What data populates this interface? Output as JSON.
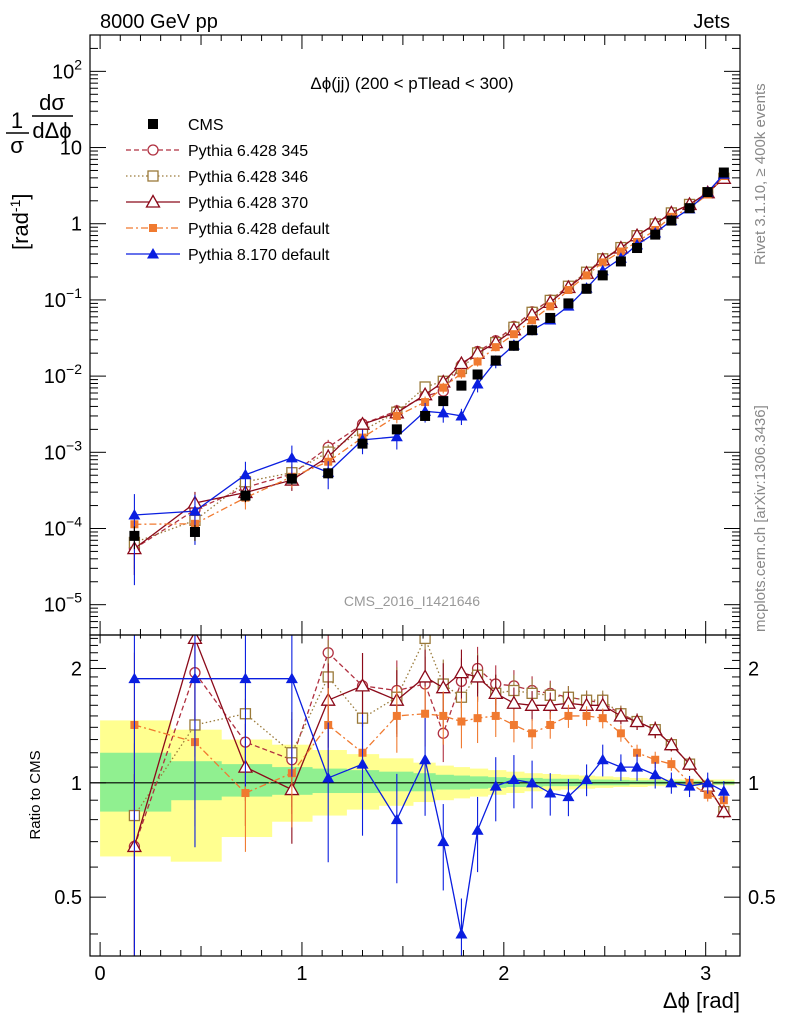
{
  "header": {
    "left": "8000 GeV pp",
    "right": "Jets"
  },
  "side_text": {
    "rivet": "Rivet 3.1.10, ≥ 400k events",
    "mcplots": "mcplots.cern.ch [arXiv:1306.3436]"
  },
  "plot_title": "Δϕ(jj) (200 < pTlead <  300)",
  "watermark": "CMS_2016_I1421646",
  "y_label_main": {
    "one": "1",
    "sigma": "σ",
    "dsig": "dσ",
    "dphi": "dΔϕ",
    "unit_open": "[rad",
    "unit_exp": "-1",
    "unit_close": "]"
  },
  "y_label_ratio": "Ratio to CMS",
  "x_label": "Δϕ [rad]",
  "colors": {
    "cms": "#000000",
    "p345": "#b03040",
    "p346": "#9a7a3a",
    "p370": "#8b0a1a",
    "p6def": "#f07a30",
    "p8": "#0a1ee0",
    "band_inner": "#90f090",
    "band_outer": "#ffff90"
  },
  "chart_data": {
    "type": "line",
    "x_axis": {
      "range": [
        -0.05,
        3.17
      ],
      "ticks": [
        0,
        1,
        2,
        3
      ],
      "tick_labels": [
        "0",
        "1",
        "2",
        "3"
      ],
      "label": "Δϕ [rad]"
    },
    "y_axis_main": {
      "scale": "log",
      "range": [
        4e-06,
        300
      ],
      "ticks": [
        1e-05,
        0.0001,
        0.001,
        0.01,
        0.1,
        1,
        10,
        100
      ],
      "tick_labels": [
        {
          "base": "10",
          "exp": "−5"
        },
        {
          "base": "10",
          "exp": "−4"
        },
        {
          "base": "10",
          "exp": "−3"
        },
        {
          "base": "10",
          "exp": "−2"
        },
        {
          "base": "10",
          "exp": "−1"
        },
        {
          "base": "1",
          "exp": ""
        },
        {
          "base": "10",
          "exp": ""
        },
        {
          "base": "10",
          "exp": "2"
        }
      ]
    },
    "y_axis_ratio": {
      "scale": "log",
      "range": [
        0.35,
        2.45
      ],
      "ticks": [
        0.5,
        1,
        2
      ],
      "tick_labels": [
        "0.5",
        "1",
        "2"
      ],
      "label": "Ratio to CMS"
    },
    "legend": {
      "placement": "top-left",
      "entries": [
        {
          "key": "cms",
          "label": "CMS"
        },
        {
          "key": "p345",
          "label": "Pythia 6.428 345"
        },
        {
          "key": "p346",
          "label": "Pythia 6.428 346"
        },
        {
          "key": "p370",
          "label": "Pythia 6.428 370"
        },
        {
          "key": "p6def",
          "label": "Pythia 6.428 default"
        },
        {
          "key": "p8",
          "label": "Pythia 8.170 default"
        }
      ]
    },
    "data": {
      "x": [
        0.17,
        0.47,
        0.72,
        0.95,
        1.13,
        1.3,
        1.47,
        1.61,
        1.7,
        1.79,
        1.87,
        1.96,
        2.05,
        2.14,
        2.23,
        2.32,
        2.41,
        2.49,
        2.58,
        2.66,
        2.75,
        2.83,
        2.92,
        3.01,
        3.09
      ],
      "y": [
        8e-05,
        9e-05,
        0.00027,
        0.00045,
        0.00053,
        0.0013,
        0.002,
        0.003,
        0.0047,
        0.0075,
        0.0105,
        0.016,
        0.025,
        0.04,
        0.058,
        0.09,
        0.14,
        0.21,
        0.32,
        0.48,
        0.72,
        1.1,
        1.6,
        2.6,
        4.7
      ]
    },
    "bands": {
      "edges": [
        0.0,
        0.35,
        0.6,
        0.85,
        1.05,
        1.22,
        1.38,
        1.55,
        1.66,
        1.75,
        1.83,
        1.92,
        2.01,
        2.1,
        2.19,
        2.28,
        2.37,
        2.45,
        2.54,
        2.62,
        2.71,
        2.79,
        2.88,
        2.97,
        3.05,
        3.14
      ],
      "inner_lo": [
        0.84,
        0.9,
        0.92,
        0.93,
        0.94,
        0.94,
        0.95,
        0.95,
        0.96,
        0.96,
        0.965,
        0.97,
        0.975,
        0.975,
        0.98,
        0.98,
        0.985,
        0.985,
        0.985,
        0.99,
        0.99,
        0.99,
        0.99,
        0.99,
        0.99
      ],
      "inner_hi": [
        1.2,
        1.14,
        1.12,
        1.1,
        1.09,
        1.08,
        1.07,
        1.06,
        1.05,
        1.045,
        1.04,
        1.035,
        1.03,
        1.03,
        1.025,
        1.025,
        1.02,
        1.02,
        1.018,
        1.015,
        1.015,
        1.012,
        1.012,
        1.01,
        1.01
      ],
      "outer_lo": [
        0.64,
        0.62,
        0.72,
        0.79,
        0.82,
        0.85,
        0.87,
        0.89,
        0.9,
        0.91,
        0.92,
        0.93,
        0.94,
        0.95,
        0.955,
        0.96,
        0.965,
        0.97,
        0.975,
        0.975,
        0.98,
        0.98,
        0.98,
        0.985,
        0.985
      ],
      "outer_hi": [
        1.46,
        1.38,
        1.3,
        1.26,
        1.22,
        1.19,
        1.16,
        1.13,
        1.11,
        1.1,
        1.09,
        1.08,
        1.07,
        1.06,
        1.055,
        1.05,
        1.045,
        1.04,
        1.035,
        1.03,
        1.025,
        1.022,
        1.02,
        1.02,
        1.02
      ]
    },
    "series": [
      {
        "key": "p345",
        "marker": "open-circle",
        "dash": "5,3",
        "ratio": [
          0.68,
          1.95,
          1.28,
          1.15,
          2.2,
          1.8,
          1.75,
          1.82,
          1.35,
          1.85,
          2.0,
          1.82,
          1.8,
          1.75,
          1.72,
          1.68,
          1.65,
          1.62,
          1.52,
          1.45,
          1.38,
          1.26,
          1.12,
          0.98,
          0.84
        ]
      },
      {
        "key": "p346",
        "marker": "open-square",
        "dash": "1.5,2.5",
        "ratio": [
          0.82,
          1.42,
          1.52,
          1.2,
          1.9,
          1.48,
          1.68,
          2.4,
          1.82,
          1.68,
          1.92,
          1.72,
          1.75,
          1.72,
          1.7,
          1.68,
          1.65,
          1.65,
          1.52,
          1.45,
          1.38,
          1.26,
          1.12,
          0.98,
          0.84
        ]
      },
      {
        "key": "p370",
        "marker": "open-triangle",
        "dash": "",
        "ratio": [
          0.68,
          2.4,
          1.1,
          0.96,
          1.65,
          1.8,
          1.65,
          1.9,
          1.78,
          1.95,
          1.9,
          1.72,
          1.62,
          1.6,
          1.6,
          1.62,
          1.6,
          1.6,
          1.5,
          1.45,
          1.38,
          1.26,
          1.12,
          0.98,
          0.84
        ]
      },
      {
        "key": "p6def",
        "marker": "filled-square",
        "dash": "7,3,2,3",
        "ratio": [
          1.42,
          1.28,
          0.94,
          1.06,
          1.42,
          1.2,
          1.5,
          1.52,
          1.5,
          1.45,
          1.48,
          1.5,
          1.42,
          1.35,
          1.42,
          1.5,
          1.5,
          1.48,
          1.35,
          1.2,
          1.15,
          1.12,
          1.0,
          0.93,
          0.9
        ]
      },
      {
        "key": "p8",
        "marker": "filled-triangle",
        "dash": "",
        "ratio": [
          1.88,
          1.88,
          1.88,
          1.88,
          1.03,
          1.12,
          0.8,
          1.15,
          0.7,
          0.4,
          0.75,
          0.98,
          1.02,
          1.0,
          0.94,
          0.92,
          1.02,
          1.15,
          1.1,
          1.1,
          1.05,
          1.0,
          0.98,
          1.0,
          0.95
        ]
      }
    ]
  }
}
